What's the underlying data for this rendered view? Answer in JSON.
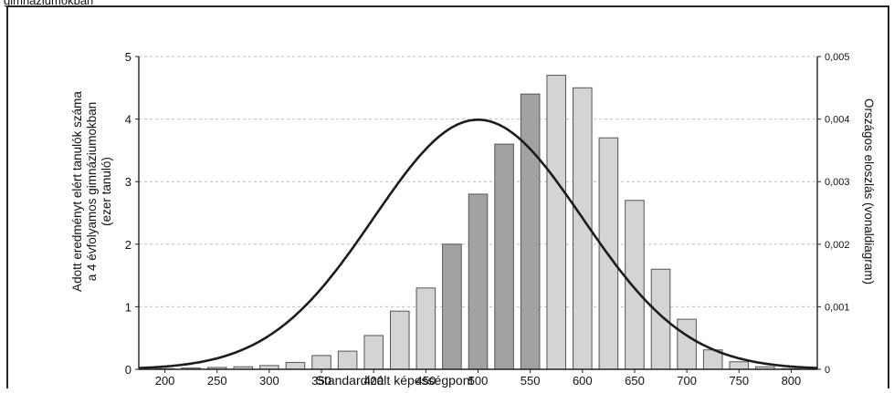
{
  "page": {
    "top_caption": "gimnáziumokban"
  },
  "chart_data": {
    "type": "bar",
    "title": "",
    "xlabel": "Standardizált képességpont",
    "ylabel": "Adott eredményt elért tanulók száma a 4 évfolyamos gimnáziumokban (ezer tanuló)",
    "ylabel_lines": [
      "Adott eredményt elért tanulók száma",
      "a 4 évfolyamos gimnáziumokban",
      "(ezer tanuló)"
    ],
    "y2label": "Országos eloszlás (vonaldiagram)",
    "xlim": [
      175,
      825
    ],
    "ylim": [
      0,
      5
    ],
    "y2lim": [
      0,
      0.005
    ],
    "x_ticks": [
      200,
      250,
      300,
      350,
      400,
      450,
      500,
      550,
      600,
      650,
      700,
      750,
      800
    ],
    "x_tick_labels": [
      "200",
      "250",
      "300",
      "350",
      "400",
      "450",
      "500",
      "550",
      "600",
      "650",
      "700",
      "750",
      "800"
    ],
    "y_ticks": [
      0,
      1,
      2,
      3,
      4,
      5
    ],
    "y_tick_labels": [
      "0",
      "1",
      "2",
      "3",
      "4",
      "5"
    ],
    "y2_ticks": [
      0,
      0.001,
      0.002,
      0.003,
      0.004,
      0.005
    ],
    "y2_tick_labels": [
      "0",
      "0,001",
      "0,002",
      "0,003",
      "0,004",
      "0,005"
    ],
    "grid": "horizontal dotted",
    "bar_width": 18,
    "series": [
      {
        "type": "bar",
        "axis": "left",
        "x": [
          200,
          225,
          250,
          275,
          300,
          325,
          350,
          375,
          400,
          425,
          450,
          475,
          500,
          525,
          550,
          575,
          600,
          625,
          650,
          675,
          700,
          725,
          750,
          775,
          800
        ],
        "values": [
          0.01,
          0.02,
          0.03,
          0.04,
          0.06,
          0.11,
          0.22,
          0.29,
          0.54,
          0.93,
          1.3,
          2.0,
          2.8,
          3.6,
          4.4,
          4.7,
          4.5,
          3.7,
          2.7,
          1.6,
          0.8,
          0.31,
          0.12,
          0.04,
          0.01
        ],
        "shades": [
          "light",
          "light",
          "light",
          "light",
          "light",
          "light",
          "light",
          "light",
          "light",
          "light",
          "light",
          "dark",
          "dark",
          "dark",
          "dark",
          "light",
          "light",
          "light",
          "light",
          "light",
          "light",
          "light",
          "light",
          "light",
          "light"
        ],
        "colors": {
          "light": "#d4d4d4",
          "dark": "#a2a2a2",
          "edge": "#555555"
        }
      },
      {
        "type": "line",
        "axis": "right",
        "distribution": "normal",
        "mean": 500,
        "sd": 100,
        "color": "#1c1c1c"
      }
    ]
  }
}
